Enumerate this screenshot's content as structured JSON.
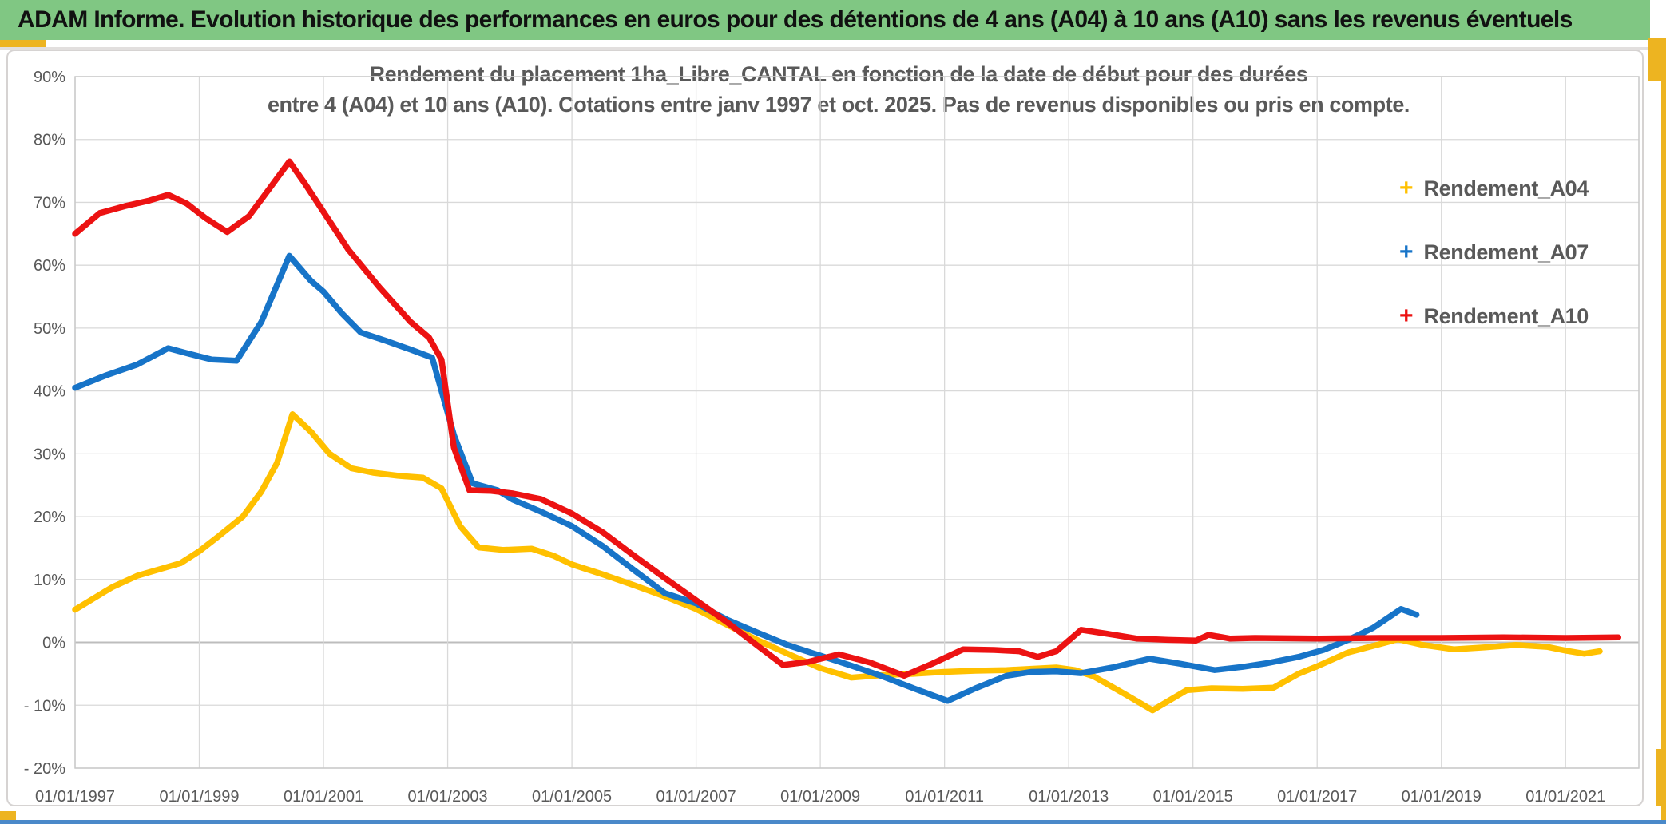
{
  "header": {
    "title": "ADAM Informe. Evolution historique des performances en euros pour des détentions de 4 ans (A04) à 10 ans (A10) sans les revenus éventuels"
  },
  "colors": {
    "header_green": "#80C783",
    "accent_yellow": "#EDB421",
    "bottom_blue": "#4A89C9",
    "axis_text": "#595959",
    "gridline": "#D9D9D9",
    "zero_line": "#BDBDBD",
    "plot_border": "#C9C9C9"
  },
  "chart_data": {
    "type": "line",
    "title_line1": "Rendement du placement 1ha_Libre_CANTAL en fonction de la date de début pour des durées",
    "title_line2": "entre 4 (A04) et 10 ans (A10). Cotations entre janv 1997 et oct. 2025. Pas de revenus disponibles ou pris en compte.",
    "grid": "on",
    "legend_position": "right",
    "x_axis": {
      "min_year": 1997,
      "max_year": 2022.18,
      "tick_years": [
        1997,
        1999,
        2001,
        2003,
        2005,
        2007,
        2009,
        2011,
        2013,
        2015,
        2017,
        2019,
        2021
      ],
      "tick_labels": [
        "01/01/1997",
        "01/01/1999",
        "01/01/2001",
        "01/01/2003",
        "01/01/2005",
        "01/01/2007",
        "01/01/2009",
        "01/01/2011",
        "01/01/2013",
        "01/01/2015",
        "01/01/2017",
        "01/01/2019",
        "01/01/2021"
      ]
    },
    "y_axis": {
      "min": -20,
      "max": 90,
      "step": 10,
      "tick_values": [
        90,
        80,
        70,
        60,
        50,
        40,
        30,
        20,
        10,
        0,
        -10,
        -20
      ],
      "tick_labels": [
        "90%",
        "80%",
        "70%",
        "60%",
        "50%",
        "40%",
        "30%",
        "20%",
        "10%",
        "0%",
        "- 10%",
        "- 20%"
      ]
    },
    "series": [
      {
        "name": "Rendement_A04",
        "color": "#FFC000",
        "marker": "+",
        "points": [
          [
            1997.0,
            5.2
          ],
          [
            1997.3,
            7.0
          ],
          [
            1997.6,
            8.8
          ],
          [
            1998.0,
            10.6
          ],
          [
            1998.35,
            11.6
          ],
          [
            1998.7,
            12.6
          ],
          [
            1999.0,
            14.5
          ],
          [
            1999.3,
            16.8
          ],
          [
            1999.7,
            20.0
          ],
          [
            2000.0,
            24.0
          ],
          [
            2000.25,
            28.5
          ],
          [
            2000.5,
            36.3
          ],
          [
            2000.8,
            33.5
          ],
          [
            2001.1,
            30.0
          ],
          [
            2001.45,
            27.7
          ],
          [
            2001.8,
            27.0
          ],
          [
            2002.2,
            26.5
          ],
          [
            2002.6,
            26.2
          ],
          [
            2002.9,
            24.5
          ],
          [
            2003.2,
            18.5
          ],
          [
            2003.5,
            15.1
          ],
          [
            2003.9,
            14.7
          ],
          [
            2004.35,
            14.9
          ],
          [
            2004.7,
            13.8
          ],
          [
            2005.0,
            12.4
          ],
          [
            2005.5,
            10.8
          ],
          [
            2006.0,
            9.1
          ],
          [
            2006.5,
            7.3
          ],
          [
            2007.0,
            5.3
          ],
          [
            2007.5,
            2.8
          ],
          [
            2008.0,
            0.3
          ],
          [
            2008.5,
            -1.9
          ],
          [
            2009.0,
            -4.1
          ],
          [
            2009.5,
            -5.6
          ],
          [
            2010.0,
            -5.2
          ],
          [
            2010.5,
            -5.0
          ],
          [
            2011.0,
            -4.7
          ],
          [
            2011.5,
            -4.5
          ],
          [
            2012.0,
            -4.4
          ],
          [
            2012.4,
            -4.2
          ],
          [
            2012.8,
            -4.0
          ],
          [
            2013.1,
            -4.4
          ],
          [
            2013.4,
            -5.4
          ],
          [
            2013.9,
            -8.2
          ],
          [
            2014.35,
            -10.8
          ],
          [
            2014.9,
            -7.6
          ],
          [
            2015.3,
            -7.3
          ],
          [
            2015.8,
            -7.4
          ],
          [
            2016.3,
            -7.2
          ],
          [
            2016.7,
            -5.0
          ],
          [
            2017.0,
            -3.8
          ],
          [
            2017.5,
            -1.6
          ],
          [
            2018.0,
            -0.3
          ],
          [
            2018.3,
            0.5
          ],
          [
            2018.7,
            -0.4
          ],
          [
            2019.2,
            -1.1
          ],
          [
            2019.7,
            -0.8
          ],
          [
            2020.2,
            -0.4
          ],
          [
            2020.7,
            -0.7
          ],
          [
            2021.0,
            -1.3
          ],
          [
            2021.3,
            -1.8
          ],
          [
            2021.55,
            -1.4
          ]
        ]
      },
      {
        "name": "Rendement_A07",
        "color": "#1774C8",
        "marker": "+",
        "points": [
          [
            1997.0,
            40.5
          ],
          [
            1997.5,
            42.5
          ],
          [
            1998.0,
            44.2
          ],
          [
            1998.5,
            46.8
          ],
          [
            1998.8,
            46.0
          ],
          [
            1999.2,
            45.0
          ],
          [
            1999.6,
            44.8
          ],
          [
            2000.0,
            51.0
          ],
          [
            2000.45,
            61.5
          ],
          [
            2000.8,
            57.5
          ],
          [
            2001.0,
            55.8
          ],
          [
            2001.3,
            52.3
          ],
          [
            2001.6,
            49.3
          ],
          [
            2002.0,
            48.0
          ],
          [
            2002.4,
            46.6
          ],
          [
            2002.75,
            45.3
          ],
          [
            2003.1,
            33.0
          ],
          [
            2003.4,
            25.3
          ],
          [
            2003.8,
            24.2
          ],
          [
            2004.05,
            22.7
          ],
          [
            2004.5,
            20.8
          ],
          [
            2005.0,
            18.5
          ],
          [
            2005.5,
            15.3
          ],
          [
            2006.0,
            11.5
          ],
          [
            2006.5,
            7.8
          ],
          [
            2007.0,
            6.2
          ],
          [
            2007.5,
            3.6
          ],
          [
            2008.0,
            1.5
          ],
          [
            2008.5,
            -0.5
          ],
          [
            2009.0,
            -2.1
          ],
          [
            2009.5,
            -3.7
          ],
          [
            2010.0,
            -5.4
          ],
          [
            2010.5,
            -7.3
          ],
          [
            2011.05,
            -9.3
          ],
          [
            2011.5,
            -7.3
          ],
          [
            2012.0,
            -5.3
          ],
          [
            2012.4,
            -4.7
          ],
          [
            2012.8,
            -4.6
          ],
          [
            2013.2,
            -4.9
          ],
          [
            2013.7,
            -4.0
          ],
          [
            2014.3,
            -2.6
          ],
          [
            2014.8,
            -3.4
          ],
          [
            2015.35,
            -4.4
          ],
          [
            2015.8,
            -3.9
          ],
          [
            2016.2,
            -3.3
          ],
          [
            2016.7,
            -2.3
          ],
          [
            2017.1,
            -1.2
          ],
          [
            2017.5,
            0.4
          ],
          [
            2017.9,
            2.3
          ],
          [
            2018.35,
            5.3
          ],
          [
            2018.6,
            4.4
          ]
        ]
      },
      {
        "name": "Rendement_A10",
        "color": "#EC1212",
        "marker": "+",
        "points": [
          [
            1997.0,
            65.0
          ],
          [
            1997.4,
            68.3
          ],
          [
            1997.8,
            69.4
          ],
          [
            1998.2,
            70.3
          ],
          [
            1998.5,
            71.2
          ],
          [
            1998.8,
            69.8
          ],
          [
            1999.1,
            67.5
          ],
          [
            1999.45,
            65.3
          ],
          [
            1999.8,
            67.8
          ],
          [
            2000.1,
            71.8
          ],
          [
            2000.45,
            76.5
          ],
          [
            2000.7,
            73.0
          ],
          [
            2001.0,
            68.5
          ],
          [
            2001.4,
            62.5
          ],
          [
            2001.9,
            56.5
          ],
          [
            2002.4,
            51.0
          ],
          [
            2002.7,
            48.5
          ],
          [
            2002.9,
            45.0
          ],
          [
            2003.1,
            31.0
          ],
          [
            2003.35,
            24.2
          ],
          [
            2003.7,
            24.1
          ],
          [
            2004.05,
            23.7
          ],
          [
            2004.5,
            22.8
          ],
          [
            2005.0,
            20.5
          ],
          [
            2005.5,
            17.5
          ],
          [
            2006.0,
            13.8
          ],
          [
            2006.5,
            10.2
          ],
          [
            2007.0,
            6.7
          ],
          [
            2007.5,
            3.2
          ],
          [
            2008.0,
            -0.6
          ],
          [
            2008.4,
            -3.6
          ],
          [
            2008.8,
            -3.1
          ],
          [
            2009.3,
            -1.9
          ],
          [
            2009.8,
            -3.2
          ],
          [
            2010.35,
            -5.3
          ],
          [
            2010.8,
            -3.4
          ],
          [
            2011.3,
            -1.1
          ],
          [
            2011.8,
            -1.2
          ],
          [
            2012.2,
            -1.4
          ],
          [
            2012.5,
            -2.3
          ],
          [
            2012.8,
            -1.4
          ],
          [
            2013.2,
            2.0
          ],
          [
            2013.6,
            1.4
          ],
          [
            2014.1,
            0.6
          ],
          [
            2014.6,
            0.4
          ],
          [
            2015.05,
            0.3
          ],
          [
            2015.25,
            1.2
          ],
          [
            2015.6,
            0.6
          ],
          [
            2016.0,
            0.7
          ],
          [
            2017.0,
            0.6
          ],
          [
            2018.0,
            0.7
          ],
          [
            2019.0,
            0.7
          ],
          [
            2020.0,
            0.8
          ],
          [
            2021.0,
            0.7
          ],
          [
            2021.85,
            0.8
          ]
        ]
      }
    ]
  }
}
